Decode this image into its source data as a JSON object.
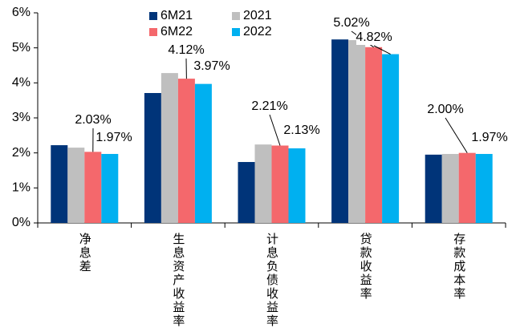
{
  "chart_data": {
    "type": "bar",
    "categories": [
      "净息差",
      "生息资产收益率",
      "计息负债收益率",
      "贷款收益率",
      "存款成本率"
    ],
    "series": [
      {
        "name": "6M21",
        "color": "#003479",
        "values": [
          2.22,
          3.71,
          1.74,
          5.24,
          1.95
        ]
      },
      {
        "name": "2021",
        "color": "#bfbfbf",
        "values": [
          2.15,
          4.28,
          2.24,
          5.22,
          1.97
        ]
      },
      {
        "name": "6M22",
        "color": "#f4686c",
        "values": [
          2.03,
          4.12,
          2.21,
          5.02,
          2.0
        ],
        "value_labels": [
          "2.03%",
          "4.12%",
          "2.21%",
          "5.02%",
          "2.00%"
        ]
      },
      {
        "name": "2022",
        "color": "#00b0f0",
        "values": [
          1.97,
          3.97,
          2.13,
          4.82,
          1.97
        ],
        "value_labels": [
          "1.97%",
          "3.97%",
          "2.13%",
          "4.82%",
          "1.97%"
        ]
      }
    ],
    "ylim": [
      0,
      6
    ],
    "yticks": [
      {
        "value": 0,
        "label": "0%"
      },
      {
        "value": 1,
        "label": "1%"
      },
      {
        "value": 2,
        "label": "2%"
      },
      {
        "value": 3,
        "label": "3%"
      },
      {
        "value": 4,
        "label": "4%"
      },
      {
        "value": 5,
        "label": "5%"
      },
      {
        "value": 6,
        "label": "6%"
      }
    ],
    "grid": false
  }
}
